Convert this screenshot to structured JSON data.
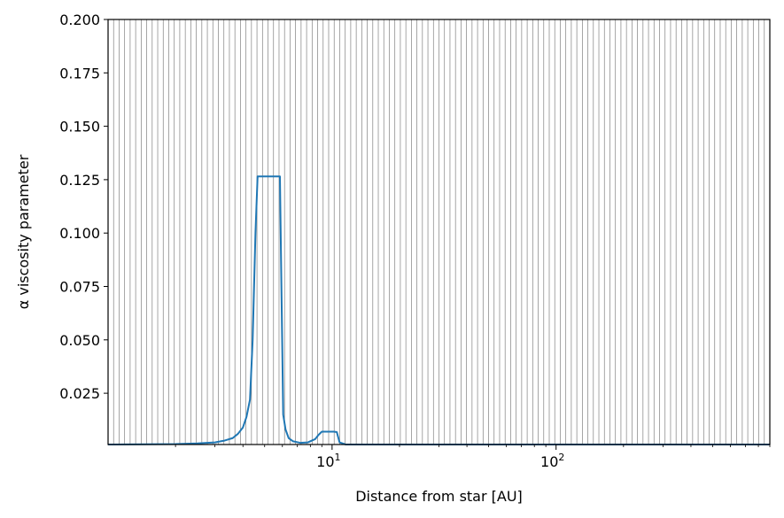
{
  "chart_data": {
    "type": "line",
    "title": "",
    "xlabel": "Distance from star [AU]",
    "ylabel": "α viscosity parameter",
    "xscale": "log",
    "xlim": [
      1.0,
      900
    ],
    "ylim": [
      0.001,
      0.2
    ],
    "grid": "vertical lines at every x grid cell",
    "legend": "none",
    "series_color": "#1f77b4",
    "grid_color": "#808080",
    "x_major_ticks": [
      {
        "value": 10,
        "base": "10",
        "exp": "1"
      },
      {
        "value": 100,
        "base": "10",
        "exp": "2"
      }
    ],
    "y_ticks": [
      {
        "value": 0.025,
        "label": "0.025"
      },
      {
        "value": 0.05,
        "label": "0.050"
      },
      {
        "value": 0.075,
        "label": "0.075"
      },
      {
        "value": 0.1,
        "label": "0.100"
      },
      {
        "value": 0.125,
        "label": "0.125"
      },
      {
        "value": 0.15,
        "label": "0.150"
      },
      {
        "value": 0.175,
        "label": "0.175"
      },
      {
        "value": 0.2,
        "label": "0.200"
      }
    ],
    "series": [
      {
        "x": [
          1.0,
          2.0,
          2.5,
          3.0,
          3.3,
          3.6,
          3.8,
          4.0,
          4.15,
          4.3,
          4.42,
          4.55,
          4.65,
          5.0,
          5.5,
          5.85,
          5.95,
          6.05,
          6.2,
          6.4,
          6.7,
          7.2,
          7.8,
          8.4,
          8.7,
          9.0,
          9.3,
          10.2,
          10.5,
          10.8,
          11.5,
          20,
          100,
          900
        ],
        "y": [
          0.001,
          0.0012,
          0.0015,
          0.002,
          0.0028,
          0.004,
          0.006,
          0.009,
          0.014,
          0.022,
          0.05,
          0.1,
          0.1265,
          0.1265,
          0.1265,
          0.1265,
          0.07,
          0.015,
          0.008,
          0.004,
          0.0025,
          0.0018,
          0.002,
          0.0035,
          0.0055,
          0.007,
          0.007,
          0.007,
          0.0068,
          0.002,
          0.001,
          0.001,
          0.001,
          0.001
        ]
      }
    ]
  }
}
